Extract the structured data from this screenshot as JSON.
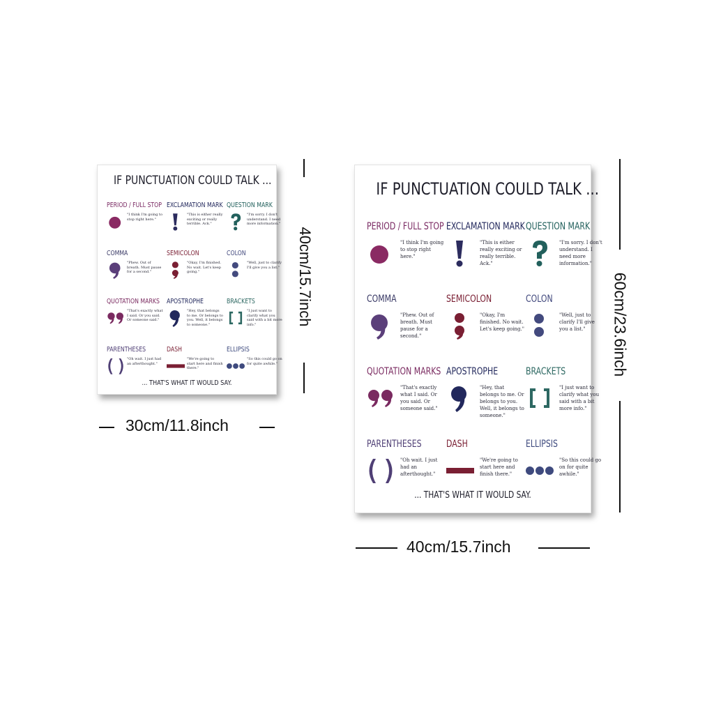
{
  "poster_small": {
    "title": "IF PUNCTUATION COULD TALK ...",
    "footer": "... THAT'S WHAT IT WOULD SAY.",
    "width_label": "30cm/11.8inch",
    "height_label": "40cm/15.7inch"
  },
  "poster_large": {
    "title": "IF PUNCTUATION COULD TALK ...",
    "footer": "... THAT'S WHAT IT WOULD SAY.",
    "width_label": "40cm/15.7inch",
    "height_label": "60cm/23.6inch"
  },
  "items": [
    {
      "name": "PERIOD / FULL STOP",
      "quote": "\"I think I'm going to stop right here.\"",
      "symbol": "period-icon",
      "color": "#8a2a63"
    },
    {
      "name": "EXCLAMATION MARK",
      "quote": "\"This is either really exciting or really terrible. Ack.\"",
      "symbol": "exclamation-icon",
      "color": "#2c2c5e"
    },
    {
      "name": "QUESTION MARK",
      "quote": "\"I'm sorry. I don't understand. I need more information.\"",
      "symbol": "question-icon",
      "color": "#22605c"
    },
    {
      "name": "COMMA",
      "quote": "\"Phew. Out of breath. Must pause for a second.\"",
      "symbol": "comma-icon",
      "color": "#5b3f7a"
    },
    {
      "name": "SEMICOLON",
      "quote": "\"Okay, I'm finished. No wait. Let's keep going.\"",
      "symbol": "semicolon-icon",
      "color": "#7a1f33"
    },
    {
      "name": "COLON",
      "quote": "\"Well, just to clarify I'll give you a list.\"",
      "symbol": "colon-icon",
      "color": "#434a7e"
    },
    {
      "name": "QUOTATION MARKS",
      "quote": "\"That's exactly what I said. Or you said. Or someone said.\"",
      "symbol": "quotation-icon",
      "color": "#7a2a60"
    },
    {
      "name": "APOSTROPHE",
      "quote": "\"Hey, that belongs to me. Or belongs to you. Well, it belongs to someone.\"",
      "symbol": "apostrophe-icon",
      "color": "#22285c"
    },
    {
      "name": "BRACKETS",
      "quote": "\"I just want to clarify what you said with a bit more info.\"",
      "symbol": "brackets-icon",
      "color": "#2d6862"
    },
    {
      "name": "PARENTHESES",
      "quote": "\"Oh wait. I just had an afterthought.\"",
      "symbol": "parentheses-icon",
      "color": "#4f3f75"
    },
    {
      "name": "DASH",
      "quote": "\"We're going to start here and finish there.\"",
      "symbol": "dash-icon",
      "color": "#7a1f33"
    },
    {
      "name": "ELLIPSIS",
      "quote": "\"So this could go on for quite awhile.\"",
      "symbol": "ellipsis-icon",
      "color": "#3e4a7e"
    }
  ],
  "header_colors": [
    "#7a2a63",
    "#22285c",
    "#22605c",
    "#3a3a66",
    "#7a1f33",
    "#434a7e",
    "#7a2a60",
    "#22285c",
    "#2d6862",
    "#4f3f75",
    "#7a1f33",
    "#3e4a7e"
  ]
}
